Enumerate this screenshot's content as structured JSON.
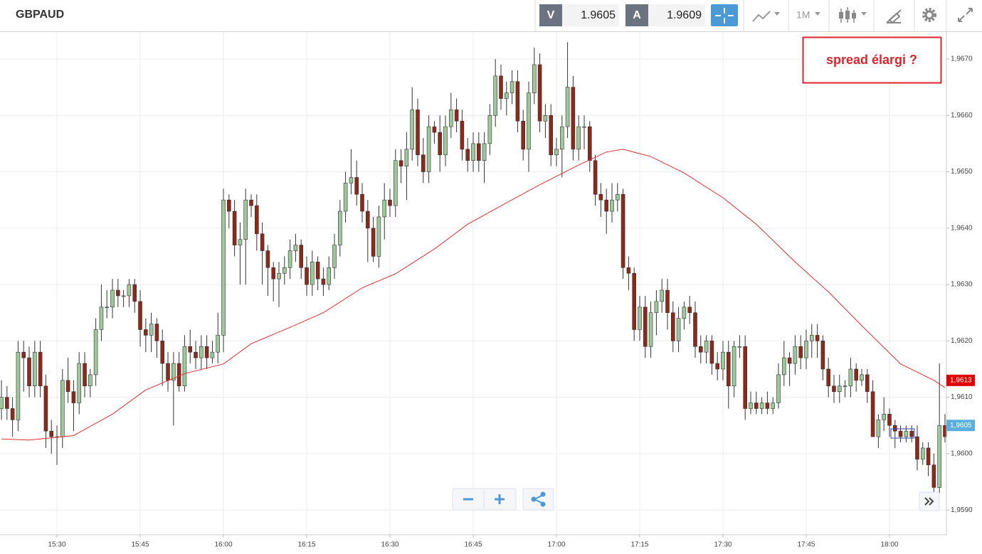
{
  "header": {
    "symbol": "GBPAUD",
    "sell_label": "V",
    "sell_price": "1.9605",
    "buy_label": "A",
    "buy_price": "1.9609",
    "timeframe": "1M"
  },
  "annotation": "spread élargi ?",
  "chart_data": {
    "type": "candlestick",
    "x": [
      920,
      921,
      922,
      923,
      924,
      925,
      926,
      927,
      928,
      929,
      930,
      931,
      932,
      933,
      934,
      935,
      936,
      937,
      938,
      939,
      940,
      941,
      942,
      943,
      944,
      945,
      946,
      947,
      948,
      949,
      950,
      951,
      952,
      953,
      954,
      955,
      956,
      957,
      958,
      959,
      960,
      961,
      962,
      963,
      964,
      965,
      966,
      967,
      968,
      969,
      970,
      971,
      972,
      973,
      974,
      975,
      976,
      977,
      978,
      979,
      980,
      981,
      982,
      983,
      984,
      985,
      986,
      987,
      988,
      989,
      990,
      991,
      992,
      993,
      994,
      995,
      996,
      997,
      998,
      999,
      1000,
      1001,
      1002,
      1003,
      1004,
      1005,
      1006,
      1007,
      1008,
      1009,
      1010,
      1011,
      1012,
      1013,
      1014,
      1015,
      1016,
      1017,
      1018,
      1019,
      1020,
      1021,
      1022,
      1023,
      1024,
      1025,
      1026,
      1027,
      1028,
      1029,
      1030,
      1031,
      1032,
      1033,
      1034,
      1035,
      1036,
      1037,
      1038,
      1039,
      1040,
      1041,
      1042,
      1043,
      1044,
      1045,
      1046,
      1047,
      1048,
      1049,
      1050,
      1051,
      1052,
      1053,
      1054,
      1055,
      1056,
      1057,
      1058,
      1059,
      1060,
      1061,
      1062,
      1063,
      1064,
      1065,
      1066,
      1067,
      1068,
      1069,
      1070,
      1071,
      1072,
      1073,
      1074,
      1075,
      1076,
      1077,
      1078,
      1079,
      1080,
      1081,
      1082,
      1083,
      1084,
      1085,
      1086,
      1087,
      1088,
      1089,
      1090
    ],
    "open": [
      1.9608,
      1.961,
      1.9608,
      1.9606,
      1.9618,
      1.9617,
      1.9612,
      1.9618,
      1.9612,
      1.9604,
      1.9603,
      1.9603,
      1.9613,
      1.9611,
      1.9609,
      1.9616,
      1.9612,
      1.9614,
      1.9622,
      1.9626,
      1.9626,
      1.9629,
      1.9628,
      1.9628,
      1.963,
      1.9627,
      1.9622,
      1.9621,
      1.9623,
      1.962,
      1.9616,
      1.9613,
      1.9616,
      1.9612,
      1.9619,
      1.9618,
      1.9617,
      1.9619,
      1.9617,
      1.9618,
      1.9621,
      1.9645,
      1.9643,
      1.9637,
      1.9638,
      1.9645,
      1.9644,
      1.9639,
      1.9636,
      1.9633,
      1.9631,
      1.9632,
      1.9633,
      1.9636,
      1.9637,
      1.9633,
      1.963,
      1.9634,
      1.9631,
      1.963,
      1.9633,
      1.9637,
      1.9643,
      1.9648,
      1.9649,
      1.9646,
      1.9643,
      1.964,
      1.9635,
      1.9642,
      1.9645,
      1.9644,
      1.9652,
      1.9651,
      1.9654,
      1.9661,
      1.9653,
      1.965,
      1.9658,
      1.9657,
      1.9653,
      1.9658,
      1.9661,
      1.9659,
      1.9654,
      1.9652,
      1.9655,
      1.9652,
      1.9655,
      1.966,
      1.9667,
      1.9663,
      1.9664,
      1.9666,
      1.9659,
      1.9654,
      1.9664,
      1.9669,
      1.9659,
      1.966,
      1.9653,
      1.9654,
      1.9658,
      1.9665,
      1.9654,
      1.9658,
      1.9658,
      1.9652,
      1.9646,
      1.9645,
      1.9643,
      1.9645,
      1.9646,
      1.9633,
      1.9632,
      1.9622,
      1.9626,
      1.9619,
      1.9625,
      1.9627,
      1.9629,
      1.9625,
      1.962,
      1.9624,
      1.9626,
      1.9625,
      1.9619,
      1.9618,
      1.962,
      1.9616,
      1.9615,
      1.9618,
      1.9612,
      1.9619,
      1.9619,
      1.9608,
      1.9609,
      1.9608,
      1.9609,
      1.9608,
      1.9609,
      1.9614,
      1.9617,
      1.9616,
      1.9619,
      1.9617,
      1.962,
      1.9621,
      1.962,
      1.9615,
      1.9612,
      1.9611,
      1.9612,
      1.9612,
      1.9615,
      1.9613,
      1.9614,
      1.9611,
      1.9603,
      1.9606,
      1.9607,
      1.9605,
      1.9604,
      1.9603,
      1.9604,
      1.9603,
      1.9599,
      1.9601,
      1.9598,
      1.9594,
      1.9605
    ],
    "high": [
      1.9613,
      1.9612,
      1.961,
      1.962,
      1.962,
      1.9619,
      1.962,
      1.962,
      1.9614,
      1.9606,
      1.9605,
      1.9615,
      1.9617,
      1.9613,
      1.9618,
      1.9618,
      1.9615,
      1.9624,
      1.963,
      1.9629,
      1.9631,
      1.9631,
      1.9629,
      1.9631,
      1.9631,
      1.9629,
      1.9624,
      1.9625,
      1.9624,
      1.9622,
      1.9618,
      1.9618,
      1.9618,
      1.9621,
      1.9622,
      1.962,
      1.9621,
      1.9621,
      1.962,
      1.9625,
      1.9647,
      1.9646,
      1.9645,
      1.9641,
      1.9647,
      1.9646,
      1.9646,
      1.9641,
      1.9637,
      1.9634,
      1.9634,
      1.9635,
      1.9638,
      1.9639,
      1.9638,
      1.9635,
      1.9636,
      1.9635,
      1.9633,
      1.9635,
      1.9639,
      1.9645,
      1.965,
      1.9654,
      1.9652,
      1.9648,
      1.9645,
      1.9642,
      1.9644,
      1.9648,
      1.9647,
      1.9654,
      1.9654,
      1.9657,
      1.9665,
      1.9663,
      1.9656,
      1.966,
      1.9659,
      1.966,
      1.966,
      1.9664,
      1.9663,
      1.9661,
      1.9656,
      1.9657,
      1.9657,
      1.9657,
      1.9662,
      1.967,
      1.9669,
      1.9666,
      1.9668,
      1.9668,
      1.9661,
      1.9666,
      1.9672,
      1.9671,
      1.9662,
      1.9662,
      1.9656,
      1.966,
      1.9673,
      1.9667,
      1.966,
      1.966,
      1.9659,
      1.9653,
      1.9648,
      1.9647,
      1.9648,
      1.9648,
      1.9647,
      1.9635,
      1.9633,
      1.9628,
      1.9628,
      1.9627,
      1.9629,
      1.9631,
      1.9631,
      1.9627,
      1.9626,
      1.9627,
      1.9628,
      1.9627,
      1.9621,
      1.9621,
      1.9621,
      1.9618,
      1.962,
      1.962,
      1.962,
      1.9621,
      1.9621,
      1.9611,
      1.9611,
      1.961,
      1.9611,
      1.961,
      1.9616,
      1.962,
      1.9618,
      1.9621,
      1.9621,
      1.9622,
      1.9623,
      1.9623,
      1.9621,
      1.9617,
      1.9614,
      1.9614,
      1.9613,
      1.9617,
      1.9616,
      1.9615,
      1.9615,
      1.9613,
      1.9607,
      1.961,
      1.9608,
      1.9606,
      1.9605,
      1.9605,
      1.9605,
      1.9605,
      1.9602,
      1.9602,
      1.96,
      1.9616,
      1.9607
    ],
    "low": [
      1.9606,
      1.9606,
      1.9603,
      1.9604,
      1.9611,
      1.961,
      1.961,
      1.961,
      1.9601,
      1.96,
      1.9598,
      1.9601,
      1.9609,
      1.9604,
      1.9607,
      1.961,
      1.961,
      1.9612,
      1.962,
      1.9624,
      1.9624,
      1.9626,
      1.9626,
      1.9626,
      1.9625,
      1.9619,
      1.9618,
      1.9618,
      1.9617,
      1.9612,
      1.9611,
      1.9605,
      1.9611,
      1.9611,
      1.9616,
      1.9615,
      1.9615,
      1.9615,
      1.9616,
      1.9616,
      1.9618,
      1.964,
      1.9635,
      1.963,
      1.963,
      1.9642,
      1.9636,
      1.963,
      1.9628,
      1.9627,
      1.9626,
      1.963,
      1.9631,
      1.9634,
      1.9631,
      1.9628,
      1.9628,
      1.9629,
      1.9628,
      1.9629,
      1.9631,
      1.9635,
      1.9641,
      1.9646,
      1.9644,
      1.9641,
      1.9634,
      1.9634,
      1.9633,
      1.9638,
      1.9642,
      1.9642,
      1.9648,
      1.9645,
      1.9652,
      1.9651,
      1.9648,
      1.9648,
      1.9655,
      1.965,
      1.9651,
      1.9656,
      1.9657,
      1.9652,
      1.965,
      1.965,
      1.965,
      1.9648,
      1.9653,
      1.9658,
      1.9661,
      1.966,
      1.9662,
      1.9657,
      1.9652,
      1.965,
      1.9662,
      1.9657,
      1.9656,
      1.9651,
      1.9651,
      1.9649,
      1.9656,
      1.9652,
      1.9652,
      1.9654,
      1.965,
      1.9644,
      1.9642,
      1.9639,
      1.9641,
      1.9643,
      1.9631,
      1.9629,
      1.962,
      1.962,
      1.9617,
      1.9617,
      1.9621,
      1.9625,
      1.9622,
      1.9618,
      1.9618,
      1.9622,
      1.9623,
      1.9617,
      1.9616,
      1.9616,
      1.9614,
      1.9613,
      1.9613,
      1.9608,
      1.961,
      1.9617,
      1.9606,
      1.9607,
      1.9607,
      1.9607,
      1.9607,
      1.9607,
      1.9608,
      1.9612,
      1.9612,
      1.9614,
      1.9615,
      1.9615,
      1.9617,
      1.9617,
      1.9613,
      1.961,
      1.9609,
      1.9609,
      1.961,
      1.961,
      1.9611,
      1.9612,
      1.9609,
      1.9603,
      1.9601,
      1.9604,
      1.9603,
      1.9601,
      1.9602,
      1.9602,
      1.9602,
      1.9597,
      1.9598,
      1.9596,
      1.9593,
      1.9593,
      1.9602
    ],
    "close": [
      1.961,
      1.9608,
      1.9606,
      1.9618,
      1.9617,
      1.9612,
      1.9618,
      1.9612,
      1.9604,
      1.9603,
      1.9603,
      1.9613,
      1.9611,
      1.9609,
      1.9616,
      1.9612,
      1.9614,
      1.9622,
      1.9626,
      1.9626,
      1.9629,
      1.9628,
      1.9628,
      1.963,
      1.9627,
      1.9622,
      1.9621,
      1.9623,
      1.962,
      1.9616,
      1.9613,
      1.9616,
      1.9612,
      1.9619,
      1.9618,
      1.9617,
      1.9619,
      1.9617,
      1.9618,
      1.9621,
      1.9645,
      1.9643,
      1.9637,
      1.9638,
      1.9645,
      1.9644,
      1.9639,
      1.9636,
      1.9633,
      1.9631,
      1.9632,
      1.9633,
      1.9636,
      1.9637,
      1.9633,
      1.963,
      1.9634,
      1.9631,
      1.963,
      1.9633,
      1.9637,
      1.9643,
      1.9648,
      1.9649,
      1.9646,
      1.9643,
      1.964,
      1.9635,
      1.9642,
      1.9645,
      1.9644,
      1.9652,
      1.9651,
      1.9654,
      1.9661,
      1.9653,
      1.965,
      1.9658,
      1.9657,
      1.9653,
      1.9658,
      1.9661,
      1.9659,
      1.9654,
      1.9652,
      1.9655,
      1.9652,
      1.9655,
      1.966,
      1.9667,
      1.9663,
      1.9664,
      1.9666,
      1.9659,
      1.9654,
      1.9664,
      1.9669,
      1.9659,
      1.966,
      1.9653,
      1.9654,
      1.9658,
      1.9665,
      1.9654,
      1.9658,
      1.9658,
      1.9652,
      1.9646,
      1.9645,
      1.9643,
      1.9645,
      1.9646,
      1.9633,
      1.9632,
      1.9622,
      1.9626,
      1.9619,
      1.9625,
      1.9627,
      1.9629,
      1.9625,
      1.962,
      1.9624,
      1.9626,
      1.9625,
      1.9619,
      1.9618,
      1.962,
      1.9616,
      1.9615,
      1.9618,
      1.9612,
      1.9619,
      1.9619,
      1.9608,
      1.9609,
      1.9608,
      1.9609,
      1.9608,
      1.9609,
      1.9614,
      1.9617,
      1.9616,
      1.9619,
      1.9617,
      1.962,
      1.9621,
      1.962,
      1.9615,
      1.9612,
      1.9611,
      1.9612,
      1.9612,
      1.9615,
      1.9613,
      1.9614,
      1.9611,
      1.9603,
      1.9606,
      1.9607,
      1.9605,
      1.9604,
      1.9603,
      1.9604,
      1.9603,
      1.9599,
      1.9601,
      1.9598,
      1.9594,
      1.9605,
      1.9603
    ],
    "up_color": "#9cc89a",
    "down_color": "#8b2a1a",
    "overlay": {
      "type": "line",
      "color": "#e03030",
      "x": [
        920,
        925,
        933,
        940,
        946,
        953,
        960,
        965,
        972,
        978,
        985,
        991,
        998,
        1004,
        1011,
        1017,
        1024,
        1029,
        1032,
        1037,
        1043,
        1050,
        1056,
        1063,
        1069,
        1075,
        1082,
        1088,
        1090
      ],
      "values": [
        1.96026,
        1.96024,
        1.96032,
        1.9607,
        1.96113,
        1.96142,
        1.96159,
        1.96195,
        1.96224,
        1.9625,
        1.96294,
        1.96319,
        1.96363,
        1.96407,
        1.96445,
        1.96477,
        1.96512,
        1.96535,
        1.9654,
        1.96527,
        1.96498,
        1.96454,
        1.96407,
        1.9634,
        1.96287,
        1.96227,
        1.96159,
        1.9613,
        1.96117
      ]
    },
    "price_labels": [
      {
        "value": 1.9613,
        "label": "1,9613",
        "color": "#e00000"
      },
      {
        "value": 1.9605,
        "label": "1,9605",
        "color": "#5aaedc"
      }
    ],
    "xlim": [
      919.74,
      1090.26
    ],
    "ylim": [
      1.95856,
      1.96748
    ],
    "xticks": [
      {
        "value": 930,
        "label": "15:30"
      },
      {
        "value": 945,
        "label": "15:45"
      },
      {
        "value": 960,
        "label": "16:00"
      },
      {
        "value": 975,
        "label": "16:15"
      },
      {
        "value": 990,
        "label": "16:30"
      },
      {
        "value": 1005,
        "label": "16:45"
      },
      {
        "value": 1020,
        "label": "17:00"
      },
      {
        "value": 1035,
        "label": "17:15"
      },
      {
        "value": 1050,
        "label": "17:30"
      },
      {
        "value": 1065,
        "label": "17:45"
      },
      {
        "value": 1080,
        "label": "18:00"
      }
    ],
    "yticks": [
      {
        "value": 1.959,
        "label": "1,9590"
      },
      {
        "value": 1.96,
        "label": "1,9600"
      },
      {
        "value": 1.961,
        "label": "1,9610"
      },
      {
        "value": 1.962,
        "label": "1,9620"
      },
      {
        "value": 1.963,
        "label": "1,9630"
      },
      {
        "value": 1.964,
        "label": "1,9640"
      },
      {
        "value": 1.965,
        "label": "1,9650"
      },
      {
        "value": 1.966,
        "label": "1,9660"
      },
      {
        "value": 1.967,
        "label": "1,9670"
      }
    ],
    "grid": true
  }
}
